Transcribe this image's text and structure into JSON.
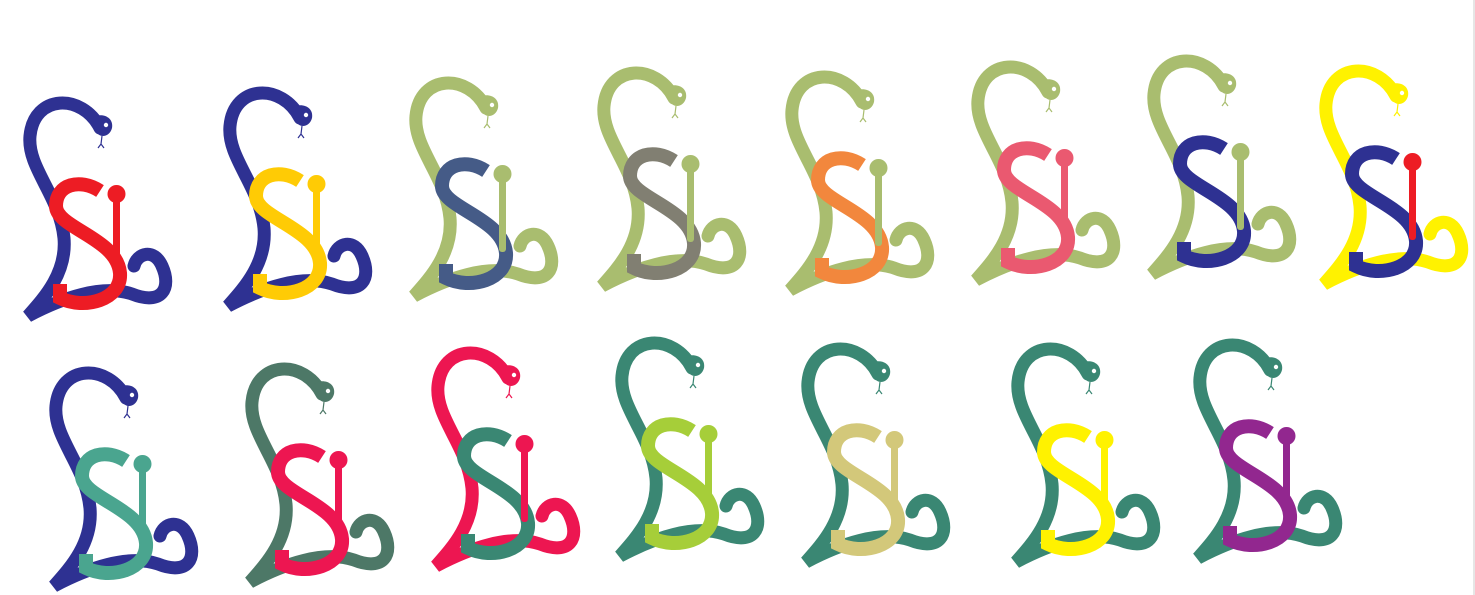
{
  "page": {
    "background": "#ffffff"
  },
  "logo_variants": [
    {
      "snake": "#2e3192",
      "s": "#ed1c24",
      "l": "#ed1c24"
    },
    {
      "snake": "#2e3192",
      "s": "#ffcb05",
      "l": "#ffcb05"
    },
    {
      "snake": "#a9bd6f",
      "s": "#455b87",
      "l": "#a9bd6f"
    },
    {
      "snake": "#a9bd6f",
      "s": "#817f72",
      "l": "#a9bd6f"
    },
    {
      "snake": "#a9bd6f",
      "s": "#f2873d",
      "l": "#a9bd6f"
    },
    {
      "snake": "#a9bd6f",
      "s": "#ea5970",
      "l": "#ea5970"
    },
    {
      "snake": "#a9bd6f",
      "s": "#2e3192",
      "l": "#a9bd6f"
    },
    {
      "snake": "#fff200",
      "s": "#2e3192",
      "l": "#ed1c24"
    },
    {
      "snake": "#2e3192",
      "s": "#4aa58f",
      "l": "#4aa58f"
    },
    {
      "snake": "#4d7867",
      "s": "#ed1651",
      "l": "#ed1651"
    },
    {
      "snake": "#ed1651",
      "s": "#3a8773",
      "l": "#ed1651"
    },
    {
      "snake": "#3a8773",
      "s": "#a6ce39",
      "l": "#a6ce39"
    },
    {
      "snake": "#3a8773",
      "s": "#d3c87a",
      "l": "#d3c87a"
    },
    {
      "snake": "#3a8773",
      "s": "#fff200",
      "l": "#fff200"
    },
    {
      "snake": "#3a8773",
      "s": "#92278f",
      "l": "#92278f"
    }
  ]
}
